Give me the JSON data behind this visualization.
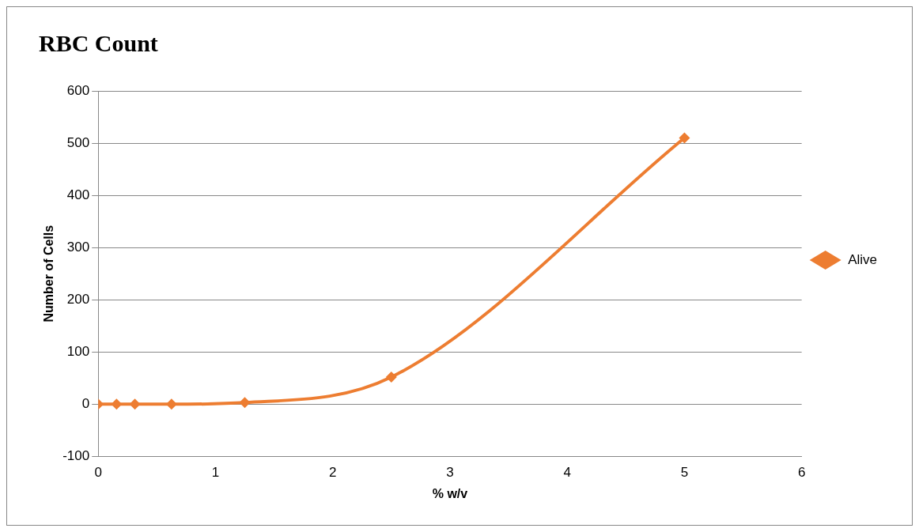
{
  "chart_data": {
    "type": "line",
    "title": "RBC Count",
    "xlabel": "% w/v",
    "ylabel": "Number of Cells",
    "x": [
      0,
      0.156,
      0.3125,
      0.625,
      1.25,
      2.5,
      5
    ],
    "series": [
      {
        "name": "Alive",
        "color": "#ed7d31",
        "values": [
          0,
          0,
          0,
          0,
          3,
          52,
          510
        ]
      }
    ],
    "xlim": [
      0,
      6
    ],
    "xticks": [
      0,
      1,
      2,
      3,
      4,
      5,
      6
    ],
    "ylim": [
      -100,
      600
    ],
    "yticks": [
      -100,
      0,
      100,
      200,
      300,
      400,
      500,
      600
    ],
    "grid": "y",
    "legend": "right",
    "marker": "diamond",
    "line_style": "solid"
  }
}
